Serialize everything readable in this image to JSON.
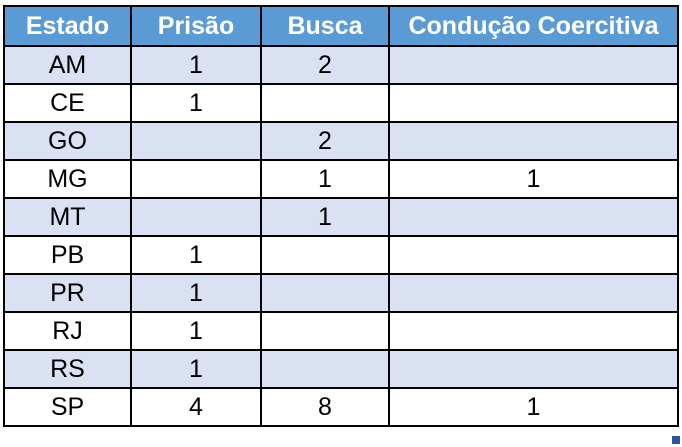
{
  "chart_data": {
    "type": "table",
    "columns": [
      "Estado",
      "Prisão",
      "Busca",
      "Condução Coercitiva"
    ],
    "rows": [
      [
        "AM",
        "1",
        "2",
        ""
      ],
      [
        "CE",
        "1",
        "",
        ""
      ],
      [
        "GO",
        "",
        "2",
        ""
      ],
      [
        "MG",
        "",
        "1",
        "1"
      ],
      [
        "MT",
        "",
        "1",
        ""
      ],
      [
        "PB",
        "1",
        "",
        ""
      ],
      [
        "PR",
        "1",
        "",
        ""
      ],
      [
        "RJ",
        "1",
        "",
        ""
      ],
      [
        "RS",
        "1",
        "",
        ""
      ],
      [
        "SP",
        "4",
        "8",
        "1"
      ]
    ],
    "layout": {
      "banded_rows": true,
      "first_data_row_banded": true,
      "grid": true,
      "text_align": "center"
    }
  },
  "colors": {
    "header_bg": "#5B9BD5",
    "header_text": "#FFFFFF",
    "band_row_bg": "#D9E1F2",
    "plain_row_bg": "#FFFFFF",
    "border": "#000000",
    "fill_handle": "#3353A9"
  }
}
